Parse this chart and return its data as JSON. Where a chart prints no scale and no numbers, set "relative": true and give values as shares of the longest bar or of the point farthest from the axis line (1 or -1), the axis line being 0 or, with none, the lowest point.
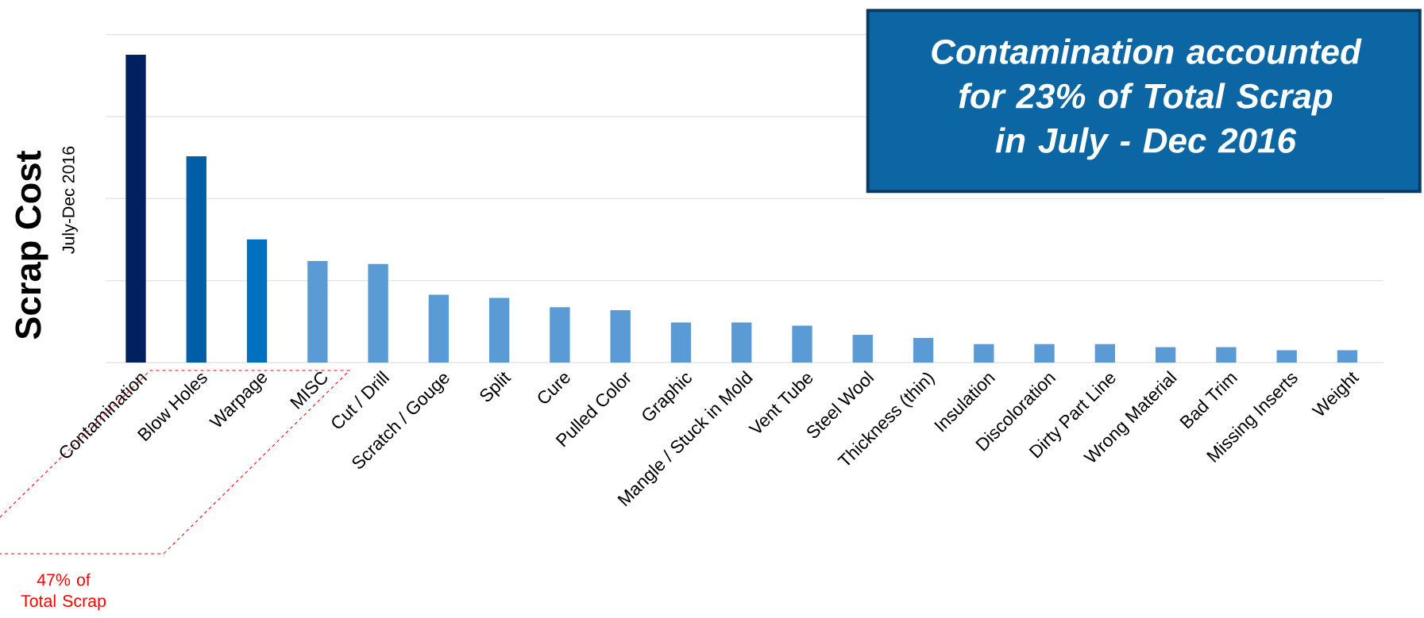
{
  "chart_data": {
    "type": "bar",
    "relative": true,
    "grid": "y",
    "ylabel": "Scrap Cost",
    "categories": [
      "Contamination",
      "Blow Holes",
      "Warpage",
      "MISC",
      "Cut / Drill",
      "Scratch / Gouge",
      "Split",
      "Cure",
      "Pulled Color",
      "Graphic",
      "Mangle / Stuck in Mold",
      "Vent Tube",
      "Steel Wool",
      "Thickness (thin)",
      "Insulation",
      "Discoloration",
      "Dirty Part Line",
      "Wrong Material",
      "Bad Trim",
      "Missing Inserts",
      "Weight"
    ],
    "values": [
      1.0,
      0.67,
      0.4,
      0.33,
      0.32,
      0.22,
      0.21,
      0.18,
      0.17,
      0.13,
      0.13,
      0.12,
      0.09,
      0.08,
      0.06,
      0.06,
      0.06,
      0.05,
      0.05,
      0.04,
      0.04
    ],
    "colors": [
      "#002060",
      "#005ea6",
      "#0070c0",
      "#5b9bd5",
      "#5b9bd5",
      "#5b9bd5",
      "#5b9bd5",
      "#5b9bd5",
      "#5b9bd5",
      "#5b9bd5",
      "#5b9bd5",
      "#5b9bd5",
      "#5b9bd5",
      "#5b9bd5",
      "#5b9bd5",
      "#5b9bd5",
      "#5b9bd5",
      "#5b9bd5",
      "#5b9bd5",
      "#5b9bd5",
      "#5b9bd5"
    ],
    "annotations": [
      "July-Dec 2016",
      "Contamination accounted for 23% of Total Scrap in July - Dec 2016",
      "47% of Total Scrap"
    ]
  }
}
